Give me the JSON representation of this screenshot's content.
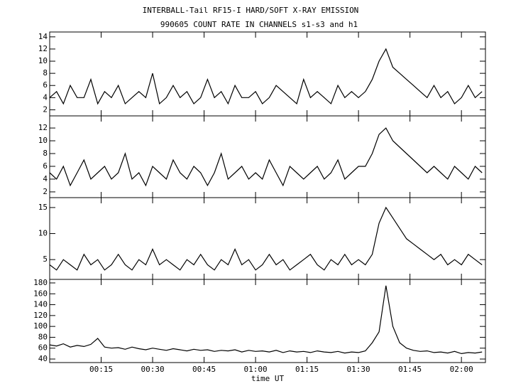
{
  "title": "INTERBALL-Tail RF15-I HARD/SOFT X-RAY EMISSION",
  "subtitle": "990605  COUNT RATE IN CHANNELS s1-s3 and h1",
  "xlabel": "time UT",
  "xlim": [
    0,
    127
  ],
  "xticks": [
    {
      "value": 15,
      "label": "00:15"
    },
    {
      "value": 30,
      "label": "00:30"
    },
    {
      "value": 45,
      "label": "00:45"
    },
    {
      "value": 60,
      "label": "01:00"
    },
    {
      "value": 75,
      "label": "01:15"
    },
    {
      "value": 90,
      "label": "01:30"
    },
    {
      "value": 105,
      "label": "01:45"
    },
    {
      "value": 120,
      "label": "02:00"
    }
  ],
  "x": [
    0,
    2,
    4,
    6,
    8,
    10,
    12,
    14,
    16,
    18,
    20,
    22,
    24,
    26,
    28,
    30,
    32,
    34,
    36,
    38,
    40,
    42,
    44,
    46,
    48,
    50,
    52,
    54,
    56,
    58,
    60,
    62,
    64,
    66,
    68,
    70,
    72,
    74,
    76,
    78,
    80,
    82,
    84,
    86,
    88,
    90,
    92,
    94,
    96,
    98,
    100,
    102,
    104,
    106,
    108,
    110,
    112,
    114,
    116,
    118,
    120,
    122,
    124,
    126
  ],
  "chart_data": [
    {
      "type": "line",
      "color": "#000000",
      "ylim": [
        1,
        14.8
      ],
      "yticks": [
        2,
        4,
        6,
        8,
        10,
        12,
        14
      ],
      "values": [
        4,
        5,
        3,
        6,
        4,
        4,
        7,
        3,
        5,
        4,
        6,
        3,
        4,
        5,
        4,
        8,
        3,
        4,
        6,
        4,
        5,
        3,
        4,
        7,
        4,
        5,
        3,
        6,
        4,
        4,
        5,
        3,
        4,
        6,
        5,
        4,
        3,
        7,
        4,
        5,
        4,
        3,
        6,
        4,
        5,
        4,
        5,
        7,
        10,
        12,
        9,
        8,
        7,
        6,
        5,
        4,
        6,
        4,
        5,
        3,
        4,
        6,
        4,
        5
      ]
    },
    {
      "type": "line",
      "color": "#000000",
      "ylim": [
        1.1,
        13.9
      ],
      "yticks": [
        2,
        4,
        6,
        8,
        10,
        12
      ],
      "values": [
        5,
        4,
        6,
        3,
        5,
        7,
        4,
        5,
        6,
        4,
        5,
        8,
        4,
        5,
        3,
        6,
        5,
        4,
        7,
        5,
        4,
        6,
        5,
        3,
        5,
        8,
        4,
        5,
        6,
        4,
        5,
        4,
        7,
        5,
        3,
        6,
        5,
        4,
        5,
        6,
        4,
        5,
        7,
        4,
        5,
        6,
        6,
        8,
        11,
        12,
        10,
        9,
        8,
        7,
        6,
        5,
        6,
        5,
        4,
        6,
        5,
        4,
        6,
        5
      ]
    },
    {
      "type": "line",
      "color": "#000000",
      "ylim": [
        1.2,
        16.9
      ],
      "yticks": [
        5,
        10,
        15
      ],
      "values": [
        4,
        3,
        5,
        4,
        3,
        6,
        4,
        5,
        3,
        4,
        6,
        4,
        3,
        5,
        4,
        7,
        4,
        5,
        4,
        3,
        5,
        4,
        6,
        4,
        3,
        5,
        4,
        7,
        4,
        5,
        3,
        4,
        6,
        4,
        5,
        3,
        4,
        5,
        6,
        4,
        3,
        5,
        4,
        6,
        4,
        5,
        4,
        6,
        12,
        15,
        13,
        11,
        9,
        8,
        7,
        6,
        5,
        6,
        4,
        5,
        4,
        6,
        5,
        4
      ]
    },
    {
      "type": "line",
      "color": "#000000",
      "ylim": [
        33.5,
        186.5
      ],
      "yticks": [
        40,
        60,
        80,
        100,
        120,
        140,
        160,
        180
      ],
      "values": [
        66,
        64,
        68,
        62,
        65,
        63,
        67,
        78,
        62,
        60,
        61,
        58,
        62,
        59,
        57,
        60,
        58,
        56,
        59,
        57,
        55,
        58,
        56,
        57,
        54,
        56,
        55,
        57,
        53,
        56,
        54,
        55,
        53,
        56,
        52,
        55,
        53,
        54,
        52,
        55,
        53,
        52,
        54,
        51,
        53,
        52,
        55,
        70,
        90,
        175,
        100,
        70,
        60,
        56,
        54,
        55,
        52,
        53,
        51,
        54,
        50,
        52,
        51,
        53
      ]
    }
  ]
}
